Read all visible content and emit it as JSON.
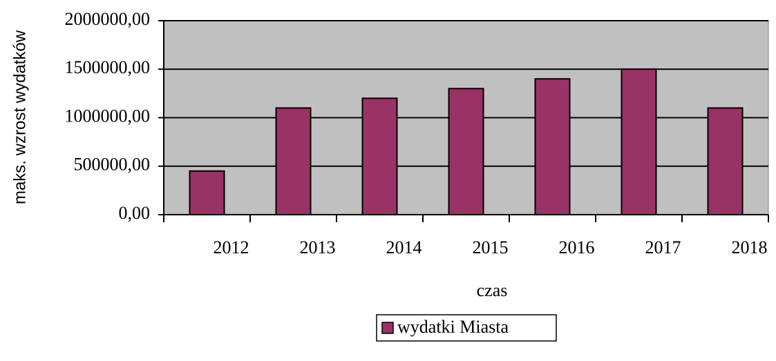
{
  "chart_data": {
    "type": "bar",
    "categories": [
      "2012",
      "2013",
      "2014",
      "2015",
      "2016",
      "2017",
      "2018"
    ],
    "series": [
      {
        "name": "wydatki Miasta",
        "color": "#993366",
        "values": [
          450000,
          1100000,
          1200000,
          1300000,
          1400000,
          1500000,
          1100000
        ]
      }
    ],
    "xlabel": "czas",
    "ylabel": "maks. wzrost wydatków",
    "ylim": [
      0,
      2000000
    ],
    "yticks": [
      {
        "value": 0,
        "label": "0,00"
      },
      {
        "value": 500000,
        "label": "500000,00"
      },
      {
        "value": 1000000,
        "label": "1000000,00"
      },
      {
        "value": 1500000,
        "label": "1500000,00"
      },
      {
        "value": 2000000,
        "label": "2000000,00"
      }
    ],
    "grid": true,
    "legend": "bottom"
  }
}
